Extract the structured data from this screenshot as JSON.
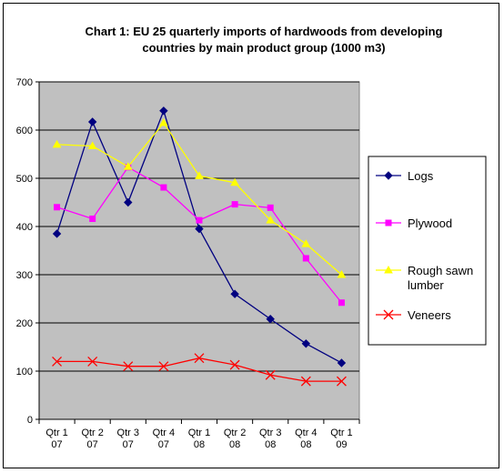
{
  "chart_data": {
    "type": "line",
    "title_line1": "Chart 1: EU 25 quarterly imports of hardwoods from developing",
    "title_line2": "countries by main product group (1000 m3)",
    "categories": [
      [
        "Qtr 1",
        "07"
      ],
      [
        "Qtr 2",
        "07"
      ],
      [
        "Qtr 3",
        "07"
      ],
      [
        "Qtr 4",
        "07"
      ],
      [
        "Qtr 1",
        "08"
      ],
      [
        "Qtr 2",
        "08"
      ],
      [
        "Qtr 3",
        "08"
      ],
      [
        "Qtr 4",
        "08"
      ],
      [
        "Qtr 1",
        "09"
      ]
    ],
    "ylim": [
      0,
      700
    ],
    "yticks": [
      0,
      100,
      200,
      300,
      400,
      500,
      600,
      700
    ],
    "plot_background": "#c0c0c0",
    "grid": true,
    "legend_position": "right",
    "series": [
      {
        "name": "Logs",
        "color": "#000080",
        "marker": "diamond",
        "values": [
          385,
          617,
          450,
          640,
          395,
          260,
          208,
          157,
          117
        ]
      },
      {
        "name": "Plywood",
        "color": "#ff00ff",
        "marker": "square",
        "values": [
          440,
          416,
          523,
          481,
          413,
          446,
          439,
          334,
          242
        ]
      },
      {
        "name": "Rough sawn lumber",
        "label_lines": [
          "Rough sawn",
          "lumber"
        ],
        "color": "#ffff00",
        "marker": "triangle",
        "values": [
          570,
          567,
          524,
          615,
          505,
          491,
          413,
          364,
          300
        ]
      },
      {
        "name": "Veneers",
        "color": "#ff0000",
        "marker": "x",
        "values": [
          120,
          120,
          110,
          110,
          127,
          113,
          92,
          79,
          79
        ]
      }
    ]
  }
}
